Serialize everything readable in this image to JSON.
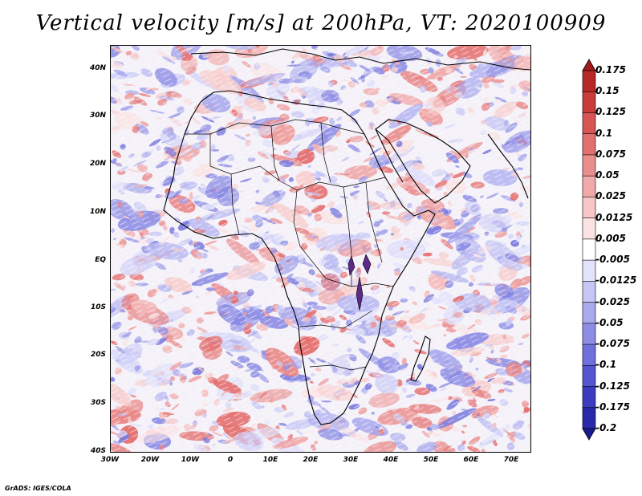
{
  "title": "Vertical velocity [m/s] at 200hPa, VT: 2020100909",
  "credit": "GrADS: IGES/COLA",
  "map": {
    "lon_range": [
      -30,
      75
    ],
    "lat_range": [
      -40,
      45
    ],
    "lat_ticks": [
      "40N",
      "30N",
      "20N",
      "10N",
      "EQ",
      "10S",
      "20S",
      "30S",
      "40S"
    ],
    "lon_ticks": [
      "30W",
      "20W",
      "10W",
      "0",
      "10E",
      "20E",
      "30E",
      "40E",
      "50E",
      "60E",
      "70E"
    ]
  },
  "colorbar": {
    "labels": [
      "0.175",
      "0.15",
      "0.125",
      "0.1",
      "0.075",
      "0.05",
      "0.025",
      "0.0125",
      "0.005",
      "-0.005",
      "-0.0125",
      "-0.025",
      "-0.05",
      "-0.075",
      "-0.1",
      "-0.125",
      "-0.175",
      "-0.2"
    ],
    "colors": [
      "#a11a1a",
      "#b92828",
      "#c83c3c",
      "#d75555",
      "#e27070",
      "#ea8d8d",
      "#f1a9a9",
      "#f7c6c6",
      "#fce3e3",
      "#ffffff",
      "#e3e3fb",
      "#c6c6f5",
      "#a9a9ee",
      "#8d8de6",
      "#7070dc",
      "#5555d0",
      "#3c3cc0",
      "#2828aa",
      "#1a1a90"
    ]
  }
}
